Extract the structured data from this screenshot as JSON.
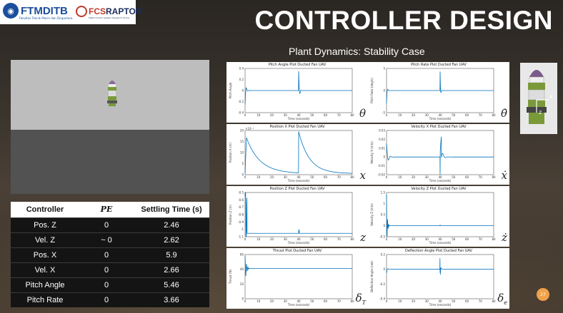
{
  "header": {
    "logo1_text": "FTMDITB",
    "logo1_sub": "Fakultas Teknik Mesin dan Dirgantara",
    "logo2_text": "FCS",
    "logo2_text_b": "RAPTOR",
    "logo2_sub": "Flight Control System Research Group",
    "title": "CONTROLLER DESIGN",
    "subtitle": "Plant Dynamics: Stability Case"
  },
  "table": {
    "headers": [
      "Controller",
      "PE",
      "Settling Time (s)"
    ],
    "rows": [
      [
        "Pos. Z",
        "0",
        "2.46"
      ],
      [
        "Vel. Z",
        "~ 0",
        "2.62"
      ],
      [
        "Pos. X",
        "0",
        "5.9"
      ],
      [
        "Vel. X",
        "0",
        "2.66"
      ],
      [
        "Pitch Angle",
        "0",
        "5.46"
      ],
      [
        "Pitch Rate",
        "0",
        "3.66"
      ]
    ]
  },
  "plots": [
    {
      "title": "Pitch Angle Plot Ducted Fan UAV",
      "ylabel": "Pitch Angle",
      "xlabel": "Time (seconds)",
      "symbol": "θ",
      "yticks": [
        "0.4",
        "0.2",
        "0",
        "-0.2",
        "-0.4"
      ],
      "ylim": [
        -0.4,
        0.4
      ],
      "xticks": [
        "0",
        "10",
        "20",
        "30",
        "40",
        "50",
        "60",
        "70",
        "80"
      ]
    },
    {
      "title": "Pitch Rate Plot Ducted Fan UAV",
      "ylabel": "Pitch Rate (deg/s)",
      "xlabel": "Time (seconds)",
      "symbol": "θ̇",
      "yticks": [
        "5",
        "0",
        "-5"
      ],
      "ylim": [
        -7,
        7
      ],
      "xticks": [
        "0",
        "10",
        "20",
        "30",
        "40",
        "50",
        "60",
        "70",
        "80"
      ]
    },
    {
      "title": "Position X Plot Ducted Fan UAV",
      "ylabel": "Position X (m)",
      "xlabel": "Time (seconds)",
      "symbol": "x",
      "exp": "×10⁻³",
      "yticks": [
        "20",
        "15",
        "10",
        "5",
        "0"
      ],
      "ylim": [
        0,
        20
      ],
      "xticks": [
        "0",
        "10",
        "20",
        "30",
        "40",
        "50",
        "60",
        "70",
        "80"
      ]
    },
    {
      "title": "Velocity X Plot Ducted Fan UAV",
      "ylabel": "Velocity X (m/s)",
      "xlabel": "Time (seconds)",
      "symbol": "ẋ",
      "yticks": [
        "0.03",
        "0.02",
        "0.01",
        "0",
        "-0.01",
        "-0.02"
      ],
      "ylim": [
        -0.02,
        0.03
      ],
      "xticks": [
        "0",
        "10",
        "20",
        "30",
        "40",
        "50",
        "60",
        "70",
        "80"
      ]
    },
    {
      "title": "Position Z Plot Ducted Fan UAV",
      "ylabel": "Position Z (m)",
      "xlabel": "Time (seconds)",
      "symbol": "z",
      "yticks": [
        "-0.5",
        "-0.6",
        "-0.7",
        "-0.8",
        "-0.9",
        "-1",
        "-1.1"
      ],
      "ylim": [
        -1.15,
        -0.5
      ],
      "xticks": [
        "0",
        "10",
        "20",
        "30",
        "40",
        "50",
        "60",
        "70",
        "80"
      ]
    },
    {
      "title": "Velocity Z Plot Ducted Fan UAV",
      "ylabel": "Velocity Z (m/s)",
      "xlabel": "Time (seconds)",
      "symbol": "ż",
      "yticks": [
        "1.5",
        "1",
        "0.5",
        "0",
        "-0.5"
      ],
      "ylim": [
        -0.5,
        1.5
      ],
      "xticks": [
        "0",
        "10",
        "20",
        "30",
        "40",
        "50",
        "60",
        "70",
        "80"
      ]
    },
    {
      "title": "Thrust Plot Ducted Fan UAV",
      "ylabel": "Thrust (N)",
      "xlabel": "Time (seconds)",
      "symbol": "δ",
      "sub": "T",
      "yticks": [
        "60",
        "40",
        "20",
        "0"
      ],
      "ylim": [
        0,
        70
      ],
      "xticks": [
        "0",
        "10",
        "20",
        "30",
        "40",
        "50",
        "60",
        "70",
        "80"
      ]
    },
    {
      "title": "Deflection Angle Plot Ducted Fan UAV",
      "ylabel": "Deflection Angle (rad)",
      "xlabel": "Time (seconds)",
      "symbol": "δ",
      "sub": "e",
      "yticks": [
        "0.2",
        "0",
        "-0.2",
        "-0.4"
      ],
      "ylim": [
        -0.4,
        0.2
      ],
      "xticks": [
        "0",
        "10",
        "20",
        "30",
        "40",
        "50",
        "60",
        "70",
        "80"
      ]
    }
  ],
  "uav_axes": {
    "x": "x",
    "z": "z"
  },
  "page_number": "27",
  "colors": {
    "line": "#0072bd",
    "table_bg": "#141414",
    "accent": "#f0a24a"
  }
}
